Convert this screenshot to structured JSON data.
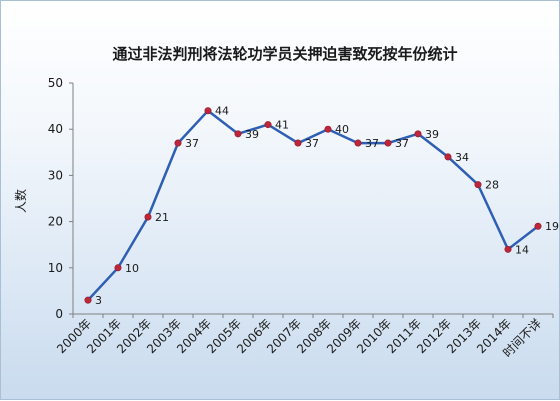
{
  "chart_data": {
    "type": "line",
    "title": "通过非法判刑将法轮功学员关押迫害致死按年份统计",
    "xlabel": "",
    "ylabel": "人数",
    "ylim": [
      0,
      50
    ],
    "yticks": [
      0,
      10,
      20,
      30,
      40,
      50
    ],
    "categories": [
      "2000年",
      "2001年",
      "2002年",
      "2003年",
      "2004年",
      "2005年",
      "2006年",
      "2007年",
      "2008年",
      "2009年",
      "2010年",
      "2011年",
      "2012年",
      "2013年",
      "2014年",
      "时间不详"
    ],
    "series": [
      {
        "values": [
          3,
          10,
          21,
          37,
          44,
          39,
          41,
          37,
          40,
          37,
          37,
          39,
          34,
          28,
          14,
          19
        ]
      }
    ],
    "data_labels": [
      "3",
      "10",
      "21",
      "37",
      "44",
      "39",
      "41",
      "37",
      "40",
      "37",
      "37",
      "39",
      "34",
      "28",
      "14",
      "19"
    ],
    "grid": false,
    "legend": "none",
    "colors": {
      "line": "#2e5fb5",
      "marker": "#c0263a",
      "axis": "#7f7f7f"
    }
  }
}
